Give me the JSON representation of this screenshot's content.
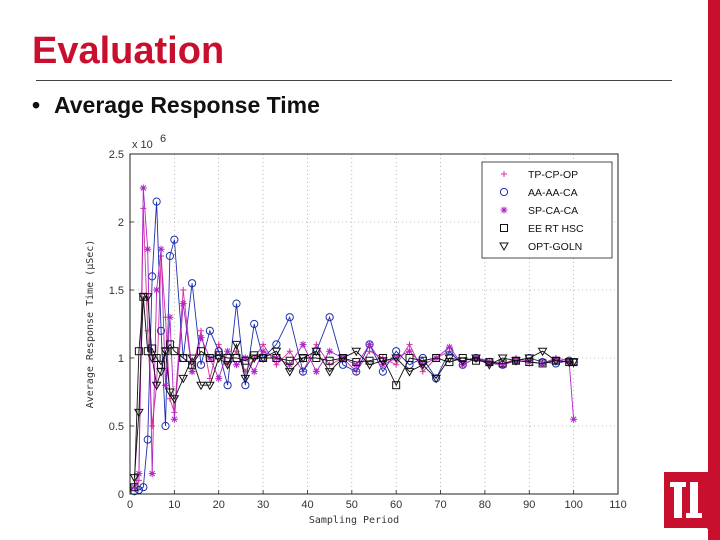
{
  "slide": {
    "title": "Evaluation",
    "bullet": "Average Response Time"
  },
  "colors": {
    "title_red": "#c8102e"
  },
  "chart_data": {
    "type": "line",
    "title": "",
    "xlabel": "Sampling Period",
    "ylabel": "Average Response Time (μSec)",
    "y_multiplier": "x 10",
    "y_multiplier_exp": "6",
    "xlim": [
      0,
      110
    ],
    "ylim": [
      0,
      2.5
    ],
    "xticks": [
      0,
      10,
      20,
      30,
      40,
      50,
      60,
      70,
      80,
      90,
      100,
      110
    ],
    "yticks": [
      0,
      0.5,
      1,
      1.5,
      2,
      2.5
    ],
    "grid": true,
    "legend_position": "top-right",
    "series": [
      {
        "name": "TP-CP-OP",
        "color": "#d6309a",
        "marker": "plus",
        "x": [
          1,
          2,
          3,
          4,
          5,
          6,
          7,
          8,
          9,
          10,
          12,
          14,
          16,
          18,
          20,
          22,
          24,
          26,
          28,
          30,
          33,
          36,
          39,
          42,
          45,
          48,
          51,
          54,
          57,
          60,
          63,
          66,
          69,
          72,
          75,
          78,
          81,
          84,
          87,
          90,
          93,
          96,
          99,
          100
        ],
        "values": [
          0.05,
          0.1,
          2.1,
          1.2,
          0.5,
          0.8,
          1.75,
          1.3,
          0.7,
          0.6,
          1.5,
          0.9,
          1.2,
          0.85,
          1.1,
          0.95,
          1.05,
          0.9,
          1.0,
          1.1,
          0.95,
          1.05,
          0.9,
          1.1,
          0.95,
          1.0,
          0.9,
          1.05,
          1.0,
          0.95,
          1.1,
          0.9,
          1.0,
          1.05,
          0.95,
          1.0,
          0.98,
          0.95,
          1.0,
          0.97,
          0.96,
          1.0,
          0.98,
          0.95
        ]
      },
      {
        "name": "AA-AA-CA",
        "color": "#1f2fb0",
        "marker": "circle",
        "x": [
          1,
          2,
          3,
          4,
          5,
          6,
          7,
          8,
          9,
          10,
          12,
          14,
          16,
          18,
          20,
          22,
          24,
          26,
          28,
          30,
          33,
          36,
          39,
          42,
          45,
          48,
          51,
          54,
          57,
          60,
          63,
          66,
          69,
          72,
          75,
          78,
          81,
          84,
          87,
          90,
          93,
          96,
          99,
          100
        ],
        "values": [
          0.02,
          0.03,
          0.05,
          0.4,
          1.6,
          2.15,
          1.2,
          0.5,
          1.75,
          1.87,
          1.0,
          1.55,
          0.95,
          1.2,
          1.05,
          0.8,
          1.4,
          0.8,
          1.25,
          1.0,
          1.1,
          1.3,
          0.9,
          1.05,
          1.3,
          0.95,
          0.9,
          1.1,
          0.9,
          1.05,
          0.95,
          1.0,
          0.85,
          1.05,
          0.95,
          1.0,
          0.97,
          0.95,
          0.98,
          1.0,
          0.97,
          0.96,
          0.98,
          0.97
        ]
      },
      {
        "name": "SP-CA-CA",
        "color": "#b024c8",
        "marker": "star",
        "x": [
          1,
          2,
          3,
          4,
          5,
          6,
          7,
          8,
          9,
          10,
          12,
          14,
          16,
          18,
          20,
          22,
          24,
          26,
          28,
          30,
          33,
          36,
          39,
          42,
          45,
          48,
          51,
          54,
          57,
          60,
          63,
          66,
          69,
          72,
          75,
          78,
          81,
          84,
          87,
          90,
          93,
          96,
          99,
          100
        ],
        "values": [
          0.05,
          0.15,
          2.25,
          1.8,
          0.15,
          1.5,
          1.8,
          0.8,
          1.3,
          0.55,
          1.4,
          0.9,
          1.15,
          1.0,
          0.85,
          1.05,
          0.95,
          1.0,
          0.9,
          1.05,
          1.0,
          0.95,
          1.1,
          0.9,
          1.05,
          1.0,
          0.95,
          1.1,
          0.95,
          1.0,
          1.05,
          0.95,
          1.0,
          1.08,
          0.95,
          1.0,
          0.96,
          0.95,
          0.98,
          0.97,
          0.96,
          0.99,
          0.97,
          0.55
        ]
      },
      {
        "name": "EE RT HSC",
        "color": "#111111",
        "marker": "square",
        "x": [
          1,
          2,
          3,
          4,
          5,
          6,
          7,
          8,
          9,
          10,
          12,
          14,
          16,
          18,
          20,
          22,
          24,
          26,
          28,
          30,
          33,
          36,
          39,
          42,
          45,
          48,
          51,
          54,
          57,
          60,
          63,
          66,
          69,
          72,
          75,
          78,
          81,
          84,
          87,
          90,
          93,
          96,
          99,
          100
        ],
        "values": [
          0.05,
          1.05,
          1.45,
          1.05,
          1.07,
          1.0,
          0.95,
          1.05,
          1.1,
          1.05,
          1.0,
          0.95,
          1.05,
          1.0,
          1.02,
          1.0,
          1.0,
          0.98,
          1.02,
          1.0,
          1.0,
          0.98,
          1.0,
          1.0,
          0.98,
          1.0,
          0.97,
          0.98,
          1.0,
          0.8,
          1.0,
          0.98,
          1.0,
          0.97,
          1.0,
          0.98,
          0.97,
          0.96,
          0.98,
          0.97,
          0.96,
          0.98,
          0.97,
          0.97
        ]
      },
      {
        "name": "OPT-GOLN",
        "color": "#111111",
        "marker": "triangle-down",
        "x": [
          1,
          2,
          3,
          4,
          5,
          6,
          7,
          8,
          9,
          10,
          12,
          14,
          16,
          18,
          20,
          22,
          24,
          26,
          28,
          30,
          33,
          36,
          39,
          42,
          45,
          48,
          51,
          54,
          57,
          60,
          63,
          66,
          69,
          72,
          75,
          78,
          81,
          84,
          87,
          90,
          93,
          96,
          99,
          100
        ],
        "values": [
          0.12,
          0.6,
          1.45,
          1.45,
          1.0,
          0.8,
          0.9,
          1.05,
          0.75,
          0.7,
          0.85,
          1.0,
          0.8,
          0.8,
          1.0,
          0.95,
          1.1,
          0.85,
          1.0,
          1.0,
          1.05,
          0.9,
          1.0,
          1.05,
          0.9,
          1.0,
          1.05,
          0.95,
          0.98,
          1.0,
          0.9,
          0.95,
          0.85,
          1.0,
          0.98,
          1.0,
          0.95,
          1.0,
          0.98,
          1.0,
          1.05,
          0.98,
          0.97,
          0.97
        ]
      }
    ]
  }
}
